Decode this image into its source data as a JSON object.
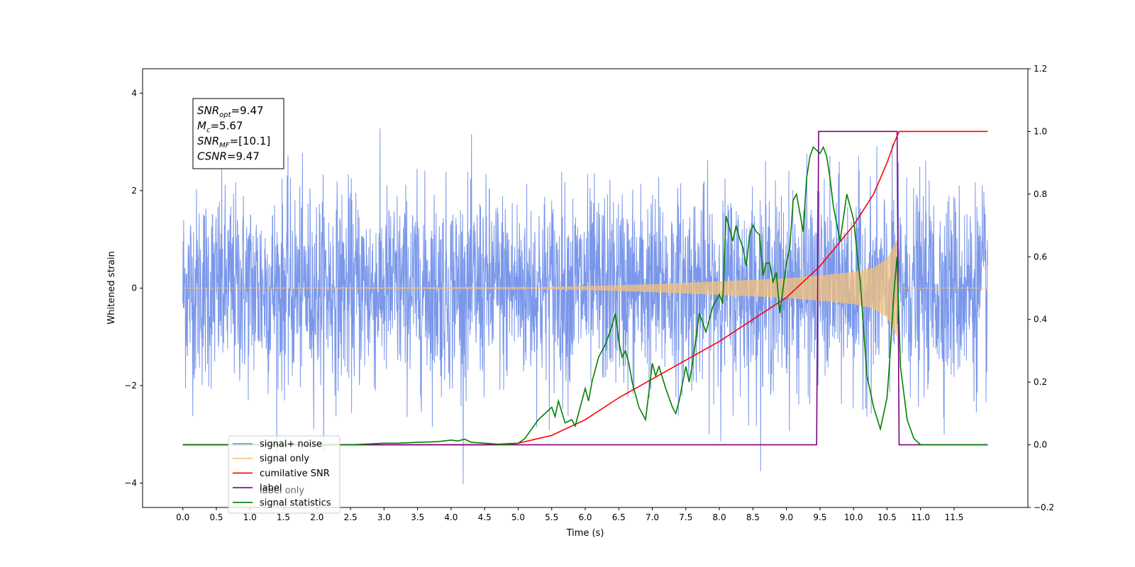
{
  "chart_data": {
    "type": "line",
    "title": "",
    "xlabel": "Time (s)",
    "ylabel": "Whitened strain",
    "y2label": "",
    "xlim": [
      -0.6,
      12.6
    ],
    "ylim": [
      -4.5,
      4.5
    ],
    "y2lim": [
      -0.2,
      1.2
    ],
    "x_ticks": [
      0.0,
      0.5,
      1.0,
      1.5,
      2.0,
      2.5,
      3.0,
      3.5,
      4.0,
      4.5,
      5.0,
      5.5,
      6.0,
      6.5,
      7.0,
      7.5,
      8.0,
      8.5,
      9.0,
      9.5,
      10.0,
      10.5,
      11.0,
      11.5
    ],
    "x_tick_labels": [
      "0.0",
      "0.5",
      "1.0",
      "1.5",
      "2.0",
      "2.5",
      "3.0",
      "3.5",
      "4.0",
      "4.5",
      "5.0",
      "5.5",
      "6.0",
      "6.5",
      "7.0",
      "7.5",
      "8.0",
      "8.5",
      "9.0",
      "9.5",
      "10.0",
      "10.5",
      "11.0",
      "11.5"
    ],
    "y_ticks": [
      -4,
      -2,
      0,
      2,
      4
    ],
    "y_tick_labels": [
      "−4",
      "−2",
      "0",
      "2",
      "4"
    ],
    "y2_ticks": [
      -0.2,
      0.0,
      0.2,
      0.4,
      0.6,
      0.8,
      1.0,
      1.2
    ],
    "y2_tick_labels": [
      "−0.2",
      "0.0",
      "0.2",
      "0.4",
      "0.6",
      "0.8",
      "1.0",
      "1.2"
    ],
    "grid": false,
    "legend_position": "lower-left",
    "colors": {
      "noise": "#6b8ce8",
      "signal": "#f6c27a",
      "cumulative_snr": "#ff0000",
      "label": "#800080",
      "statistics": "#008000"
    },
    "series": [
      {
        "name": "signal+ noise",
        "axis": "left",
        "style": "random noise trace, approx. Gaussian, sigma ~1.0, peaks near ±4, 0 to 12 s",
        "x_range": [
          0.0,
          12.0
        ],
        "amplitude_approx": 1.0
      },
      {
        "name": "signal only",
        "axis": "left",
        "style": "chirp with growing amplitude, ends at 10.65 s",
        "x_range": [
          0.0,
          12.0
        ],
        "envelope_x": [
          0.0,
          5.0,
          6.0,
          7.0,
          8.0,
          9.0,
          9.5,
          10.0,
          10.3,
          10.5,
          10.65,
          10.66,
          12.0
        ],
        "envelope_y": [
          0.0,
          0.01,
          0.04,
          0.08,
          0.14,
          0.2,
          0.26,
          0.33,
          0.42,
          0.6,
          1.0,
          0.0,
          0.0
        ]
      },
      {
        "name": "cumilative SNR",
        "axis": "right",
        "x": [
          0.0,
          4.5,
          5.0,
          5.5,
          6.0,
          6.5,
          7.0,
          7.5,
          8.0,
          8.5,
          9.0,
          9.5,
          10.0,
          10.3,
          10.5,
          10.6,
          10.68,
          12.0
        ],
        "y": [
          0.0,
          0.0,
          0.005,
          0.03,
          0.08,
          0.15,
          0.21,
          0.27,
          0.33,
          0.4,
          0.47,
          0.57,
          0.7,
          0.8,
          0.9,
          0.96,
          1.0,
          1.0
        ]
      },
      {
        "name": "label",
        "axis": "right",
        "x": [
          0.0,
          9.45,
          9.48,
          10.65,
          10.68,
          12.0
        ],
        "y": [
          0.0,
          0.0,
          1.0,
          1.0,
          0.0,
          0.0
        ]
      },
      {
        "name": "signal statistics",
        "axis": "right",
        "x": [
          0.0,
          2.0,
          2.5,
          3.0,
          3.2,
          3.5,
          3.8,
          4.0,
          4.1,
          4.2,
          4.3,
          4.5,
          4.8,
          5.0,
          5.1,
          5.2,
          5.3,
          5.5,
          5.55,
          5.6,
          5.7,
          5.8,
          5.85,
          5.9,
          6.0,
          6.05,
          6.1,
          6.2,
          6.3,
          6.35,
          6.4,
          6.45,
          6.5,
          6.55,
          6.6,
          6.65,
          6.7,
          6.8,
          6.9,
          7.0,
          7.05,
          7.1,
          7.2,
          7.3,
          7.35,
          7.4,
          7.5,
          7.55,
          7.6,
          7.7,
          7.8,
          7.85,
          7.9,
          8.0,
          8.05,
          8.1,
          8.2,
          8.25,
          8.3,
          8.35,
          8.4,
          8.45,
          8.5,
          8.55,
          8.6,
          8.65,
          8.7,
          8.75,
          8.8,
          8.85,
          8.9,
          9.0,
          9.05,
          9.1,
          9.15,
          9.2,
          9.25,
          9.3,
          9.35,
          9.4,
          9.5,
          9.55,
          9.6,
          9.65,
          9.7,
          9.8,
          9.9,
          10.0,
          10.1,
          10.2,
          10.3,
          10.4,
          10.5,
          10.55,
          10.6,
          10.65,
          10.7,
          10.8,
          10.9,
          11.0,
          11.5,
          12.0
        ],
        "y": [
          0.0,
          0.0,
          0.0,
          0.005,
          0.005,
          0.008,
          0.01,
          0.015,
          0.012,
          0.018,
          0.008,
          0.005,
          0.0,
          0.005,
          0.02,
          0.05,
          0.08,
          0.12,
          0.09,
          0.14,
          0.07,
          0.08,
          0.06,
          0.1,
          0.18,
          0.14,
          0.2,
          0.28,
          0.32,
          0.35,
          0.38,
          0.42,
          0.33,
          0.28,
          0.3,
          0.26,
          0.2,
          0.12,
          0.08,
          0.26,
          0.22,
          0.25,
          0.18,
          0.12,
          0.1,
          0.14,
          0.25,
          0.2,
          0.26,
          0.42,
          0.36,
          0.4,
          0.44,
          0.48,
          0.45,
          0.73,
          0.65,
          0.7,
          0.66,
          0.63,
          0.57,
          0.67,
          0.7,
          0.68,
          0.67,
          0.54,
          0.58,
          0.58,
          0.52,
          0.55,
          0.42,
          0.58,
          0.63,
          0.78,
          0.8,
          0.74,
          0.68,
          0.85,
          0.92,
          0.95,
          0.93,
          0.95,
          0.92,
          0.85,
          0.76,
          0.65,
          0.8,
          0.72,
          0.52,
          0.22,
          0.12,
          0.05,
          0.15,
          0.3,
          0.48,
          0.6,
          0.25,
          0.08,
          0.02,
          0.0,
          0.0,
          0.0
        ]
      }
    ],
    "annotation_box": {
      "lines": [
        {
          "base": "SNR",
          "sub": "opt",
          "rest": "=9.47"
        },
        {
          "base": "M",
          "sub": "c",
          "rest": "=5.67"
        },
        {
          "base": "SNR",
          "sub": "MF",
          "rest": "=[10.1]"
        },
        {
          "base": "CSNR",
          "sub": "",
          "rest": "=9.47"
        }
      ]
    },
    "legend_entries": [
      {
        "label": "signal+ noise",
        "color": "#6b8ce8"
      },
      {
        "label": "signal only",
        "color": "#f6c27a"
      },
      {
        "label": "cumilative SNR",
        "color": "#ff0000"
      },
      {
        "label": "label",
        "color": "#800080"
      },
      {
        "label": "signal statistics",
        "color": "#008000"
      }
    ],
    "legend_ghost_text": "label only"
  }
}
